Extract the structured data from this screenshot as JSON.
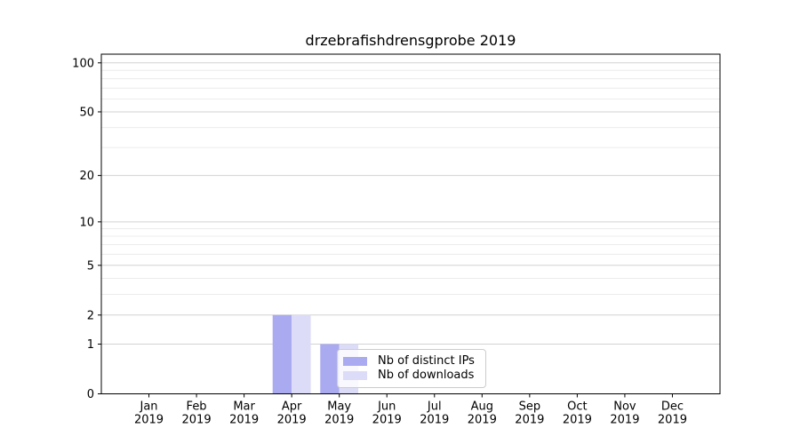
{
  "chart_data": {
    "type": "bar",
    "title": "drzebrafishdrensgprobe 2019",
    "categories": [
      "Jan",
      "Feb",
      "Mar",
      "Apr",
      "May",
      "Jun",
      "Jul",
      "Aug",
      "Sep",
      "Oct",
      "Nov",
      "Dec"
    ],
    "x_tick_year": "2019",
    "series": [
      {
        "name": "Nb of distinct IPs",
        "color": "#aaaaf0",
        "values": [
          0,
          0,
          0,
          2,
          1,
          0,
          0,
          0,
          0,
          0,
          0,
          0
        ]
      },
      {
        "name": "Nb of downloads",
        "color": "#dcdcf8",
        "values": [
          0,
          0,
          0,
          2,
          1,
          0,
          0,
          0,
          0,
          0,
          0,
          0
        ]
      }
    ],
    "y_scale": "log1p",
    "y_ticks": [
      0,
      1,
      2,
      5,
      10,
      20,
      50,
      100
    ],
    "y_minor_ticks": [
      3,
      4,
      6,
      7,
      8,
      9,
      30,
      40,
      60,
      70,
      80,
      90
    ],
    "ylim": [
      0,
      113
    ],
    "xlabel": "",
    "ylabel": "",
    "grid": "horizontal",
    "legend": {
      "position": "lower-center-inside",
      "entries": [
        "Nb of distinct IPs",
        "Nb of downloads"
      ]
    },
    "colors": {
      "bar_distinct_ips": "#aaaaf0",
      "bar_downloads": "#dcdcf8",
      "major_grid": "#d2d2d2",
      "minor_grid": "#ececec",
      "axis": "#000000",
      "legend_border": "#cccccc",
      "background": "#ffffff"
    }
  }
}
